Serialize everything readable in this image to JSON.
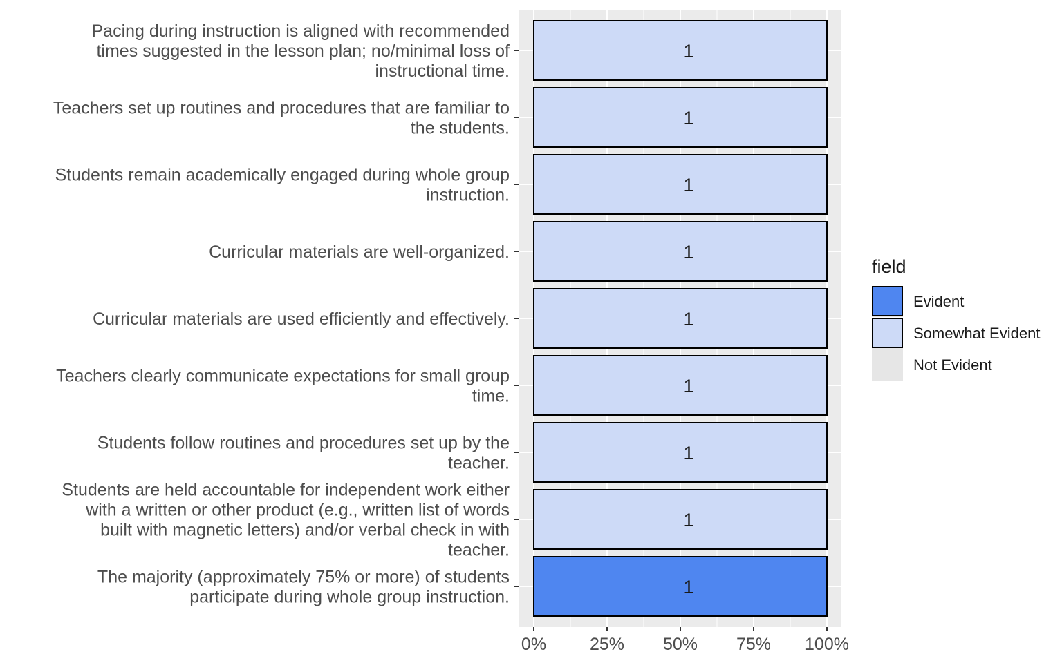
{
  "chart_data": {
    "type": "bar",
    "orientation": "horizontal",
    "stacked": true,
    "categories": [
      "Pacing during instruction is aligned with recommended times suggested in the lesson plan; no/minimal loss of instructional time.",
      "Teachers set up routines and procedures that are familiar to the students.",
      "Students remain academically engaged during whole group instruction.",
      "Curricular materials are well-organized.",
      "Curricular materials are used efficiently and effectively.",
      "Teachers clearly communicate expectations for small group time.",
      "Students follow routines and procedures set up by the teacher.",
      "Students are held accountable for independent work either with a written or other product (e.g., written list of words built with magnetic letters) and/or verbal check in with teacher.",
      "The majority (approximately 75% or more) of students participate during whole group instruction."
    ],
    "category_lines": [
      [
        "Pacing during instruction is aligned with recommended",
        "times suggested in the lesson plan; no/minimal loss of",
        "instructional time."
      ],
      [
        "Teachers set up routines and procedures that are familiar to",
        "the students."
      ],
      [
        "Students remain academically engaged during whole group",
        "instruction."
      ],
      [
        "Curricular materials are well-organized."
      ],
      [
        "Curricular materials are used efficiently and effectively."
      ],
      [
        "Teachers clearly communicate expectations for small group",
        "time."
      ],
      [
        "Students follow routines and procedures set up by the",
        "teacher."
      ],
      [
        "Students are held accountable for independent work either",
        "with a written or other product (e.g., written list of words",
        "built with magnetic letters) and/or verbal check in with",
        "teacher."
      ],
      [
        "The majority (approximately 75% or more) of students",
        "participate during whole group instruction."
      ]
    ],
    "series": [
      {
        "name": "Evident",
        "color": "#4f86f0",
        "values": [
          0,
          0,
          0,
          0,
          0,
          0,
          0,
          0,
          1
        ]
      },
      {
        "name": "Somewhat Evident",
        "color": "#cddaf7",
        "values": [
          1,
          1,
          1,
          1,
          1,
          1,
          1,
          1,
          0
        ]
      },
      {
        "name": "Not Evident",
        "color": "#e6e6e6",
        "values": [
          0,
          0,
          0,
          0,
          0,
          0,
          0,
          0,
          0
        ]
      }
    ],
    "bar_labels": [
      "1",
      "1",
      "1",
      "1",
      "1",
      "1",
      "1",
      "1",
      "1"
    ],
    "xlim": [
      0,
      1
    ],
    "x_ticks": [
      0,
      0.25,
      0.5,
      0.75,
      1
    ],
    "x_tick_labels": [
      "0%",
      "25%",
      "50%",
      "75%",
      "100%"
    ],
    "legend": {
      "title": "field",
      "position": "right"
    },
    "grid": true,
    "panel_background": "#ebebeb"
  }
}
